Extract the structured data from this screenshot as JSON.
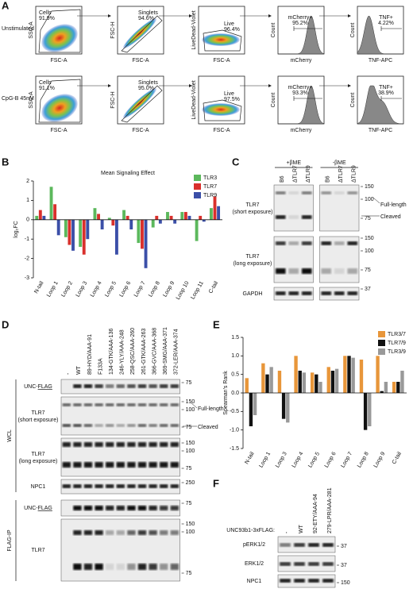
{
  "panel_labels": [
    "A",
    "B",
    "C",
    "D",
    "E",
    "F"
  ],
  "panel_a": {
    "rows": [
      "Unstimulated",
      "CpG-B 45nM"
    ],
    "plots": [
      {
        "x_label": "FSC-A",
        "y_label": "SSC-A"
      },
      {
        "x_label": "FSC-A",
        "y_label": "FSC-H"
      },
      {
        "x_label": "FSC-A",
        "y_label": "LiveDead-Violet"
      },
      {
        "x_label": "mCherry",
        "y_label": "Count"
      },
      {
        "x_label": "TNF-APC",
        "y_label": "Count"
      }
    ],
    "gates": [
      [
        {
          "name": "Cells",
          "value": "91.9%"
        },
        {
          "name": "Singlets",
          "value": "94.6%"
        },
        {
          "name": "Live",
          "value": "96.4%"
        },
        {
          "name": "mCherry+",
          "value": "95.2%"
        },
        {
          "name": "TNF+",
          "value": "4.22%"
        }
      ],
      [
        {
          "name": "Cells",
          "value": "91.1%"
        },
        {
          "name": "Singlets",
          "value": "95.0%"
        },
        {
          "name": "Live",
          "value": "97.5%"
        },
        {
          "name": "mCherry+",
          "value": "93.3%"
        },
        {
          "name": "TNF+",
          "value": "38.9%"
        }
      ]
    ]
  },
  "chart_data": [
    {
      "type": "bar",
      "title": "Mean Signaling Effect",
      "y_label": "log₂FC",
      "categories": [
        "N-tail",
        "Loop 1",
        "Loop 2",
        "Loop 3",
        "Loop 4",
        "Loop 5",
        "Loop 6",
        "Loop 7",
        "Loop 8",
        "Loop 9",
        "Loop 10",
        "Loop 11",
        "C-tail"
      ],
      "series": [
        {
          "name": "TLR3",
          "color": "#5cb85c",
          "values": [
            0.2,
            1.7,
            -0.9,
            -1.4,
            0.6,
            0.1,
            0.5,
            -1.2,
            -0.4,
            0.4,
            0.4,
            -1.1,
            0.6
          ]
        },
        {
          "name": "TLR7",
          "color": "#d9302c",
          "values": [
            0.5,
            0.8,
            -1.3,
            -1.8,
            0.3,
            -0.3,
            0.2,
            -1.5,
            0.2,
            0.2,
            0.4,
            0.2,
            1.2
          ]
        },
        {
          "name": "TLR9",
          "color": "#3b4fa8",
          "values": [
            0.2,
            -0.8,
            -1.6,
            -1.0,
            -0.5,
            -1.8,
            -0.5,
            -2.5,
            -0.2,
            -0.2,
            0.2,
            -0.1,
            0.7
          ]
        }
      ],
      "ylim": [
        -3,
        2
      ],
      "yticks": [
        -3,
        -2,
        -1,
        0,
        1,
        2
      ],
      "legend": "upper right"
    },
    {
      "type": "bar",
      "y_label": "Spearman's Rank",
      "categories": [
        "N-tail",
        "Loop 1",
        "Loop 3",
        "Loop 4",
        "Loop 5",
        "Loop 6",
        "Loop 7",
        "Loop 8",
        "Loop 9",
        "C-tail"
      ],
      "series": [
        {
          "name": "TLR3/7",
          "color": "#e8963a",
          "values": [
            0.4,
            0.8,
            0.6,
            1.0,
            0.55,
            0.7,
            1.0,
            0.9,
            1.0,
            0.3
          ]
        },
        {
          "name": "TLR7/9",
          "color": "#111111",
          "values": [
            -0.9,
            0.5,
            -0.7,
            0.6,
            0.5,
            0.6,
            1.0,
            -1.0,
            0.05,
            0.3
          ]
        },
        {
          "name": "TLR3/9",
          "color": "#999999",
          "values": [
            -0.6,
            0.7,
            -0.8,
            0.55,
            0.3,
            0.65,
            0.95,
            -0.9,
            0.3,
            0.6
          ]
        }
      ],
      "ylim": [
        -1.5,
        1.5
      ],
      "yticks": [
        -1.5,
        {
          "value": -1,
          "label": "-1.0"
        },
        -0.5,
        {
          "value": 0,
          "label": "0.0"
        },
        0.5,
        {
          "value": 1,
          "label": "1.0"
        },
        1.5
      ],
      "legend": "upper right"
    }
  ],
  "panel_c": {
    "groups": [
      "+βME",
      "-βME"
    ],
    "lanes": [
      "B6",
      "ΔTLR7",
      "ΔTLR9",
      "B6",
      "ΔTLR7",
      "ΔTLR9"
    ],
    "blots": [
      {
        "label": "TLR7",
        "note": "(short exposure)",
        "markers": [
          150,
          100,
          75
        ]
      },
      {
        "label": "TLR7",
        "note": "(long exposure)",
        "markers": [
          150,
          100,
          75
        ]
      },
      {
        "label": "GAPDH",
        "markers": [
          37
        ]
      }
    ],
    "annotations": [
      "Full-length",
      "Cleaved"
    ]
  },
  "panel_d": {
    "lanes": [
      "-",
      "WT",
      "89-HYD/AAA-91",
      "F133A",
      "134-GTK/AAA-136",
      "246-YLY/AAA-248",
      "258-QSC/AAA-260",
      "261-GTK/AAA-263",
      "366-GVC/AAA-368",
      "369-SMG/AAA-371",
      "372-LER/AAA-374"
    ],
    "sections": [
      "WCL",
      "FLAG-IP"
    ],
    "blots": [
      {
        "label": "UNC-",
        "label_underlined": "FLAG",
        "markers": [
          75
        ]
      },
      {
        "label": "TLR7",
        "note": "(short exposure)",
        "markers": [
          150,
          100,
          75
        ]
      },
      {
        "label": "TLR7",
        "note": "(long exposure)",
        "markers": [
          150,
          100,
          75
        ]
      },
      {
        "label": "NPC1",
        "markers": [
          250
        ]
      },
      {
        "label": "UNC-",
        "label_underlined": "FLAG",
        "markers": [
          75
        ]
      },
      {
        "label": "TLR7",
        "markers": [
          150,
          100,
          75
        ]
      }
    ],
    "annotations": [
      "Full-length",
      "Cleaved"
    ]
  },
  "panel_f": {
    "construct": "UNC93b1-3xFLAG:",
    "lanes": [
      "-",
      "WT",
      "92-ETY/AAA-94",
      "279-LPR/AAA-281"
    ],
    "blots": [
      {
        "label": "pERK1/2",
        "markers": [
          37
        ]
      },
      {
        "label": "ERK1/2",
        "markers": [
          37
        ]
      },
      {
        "label": "NPC1",
        "markers": [
          150
        ]
      }
    ]
  }
}
